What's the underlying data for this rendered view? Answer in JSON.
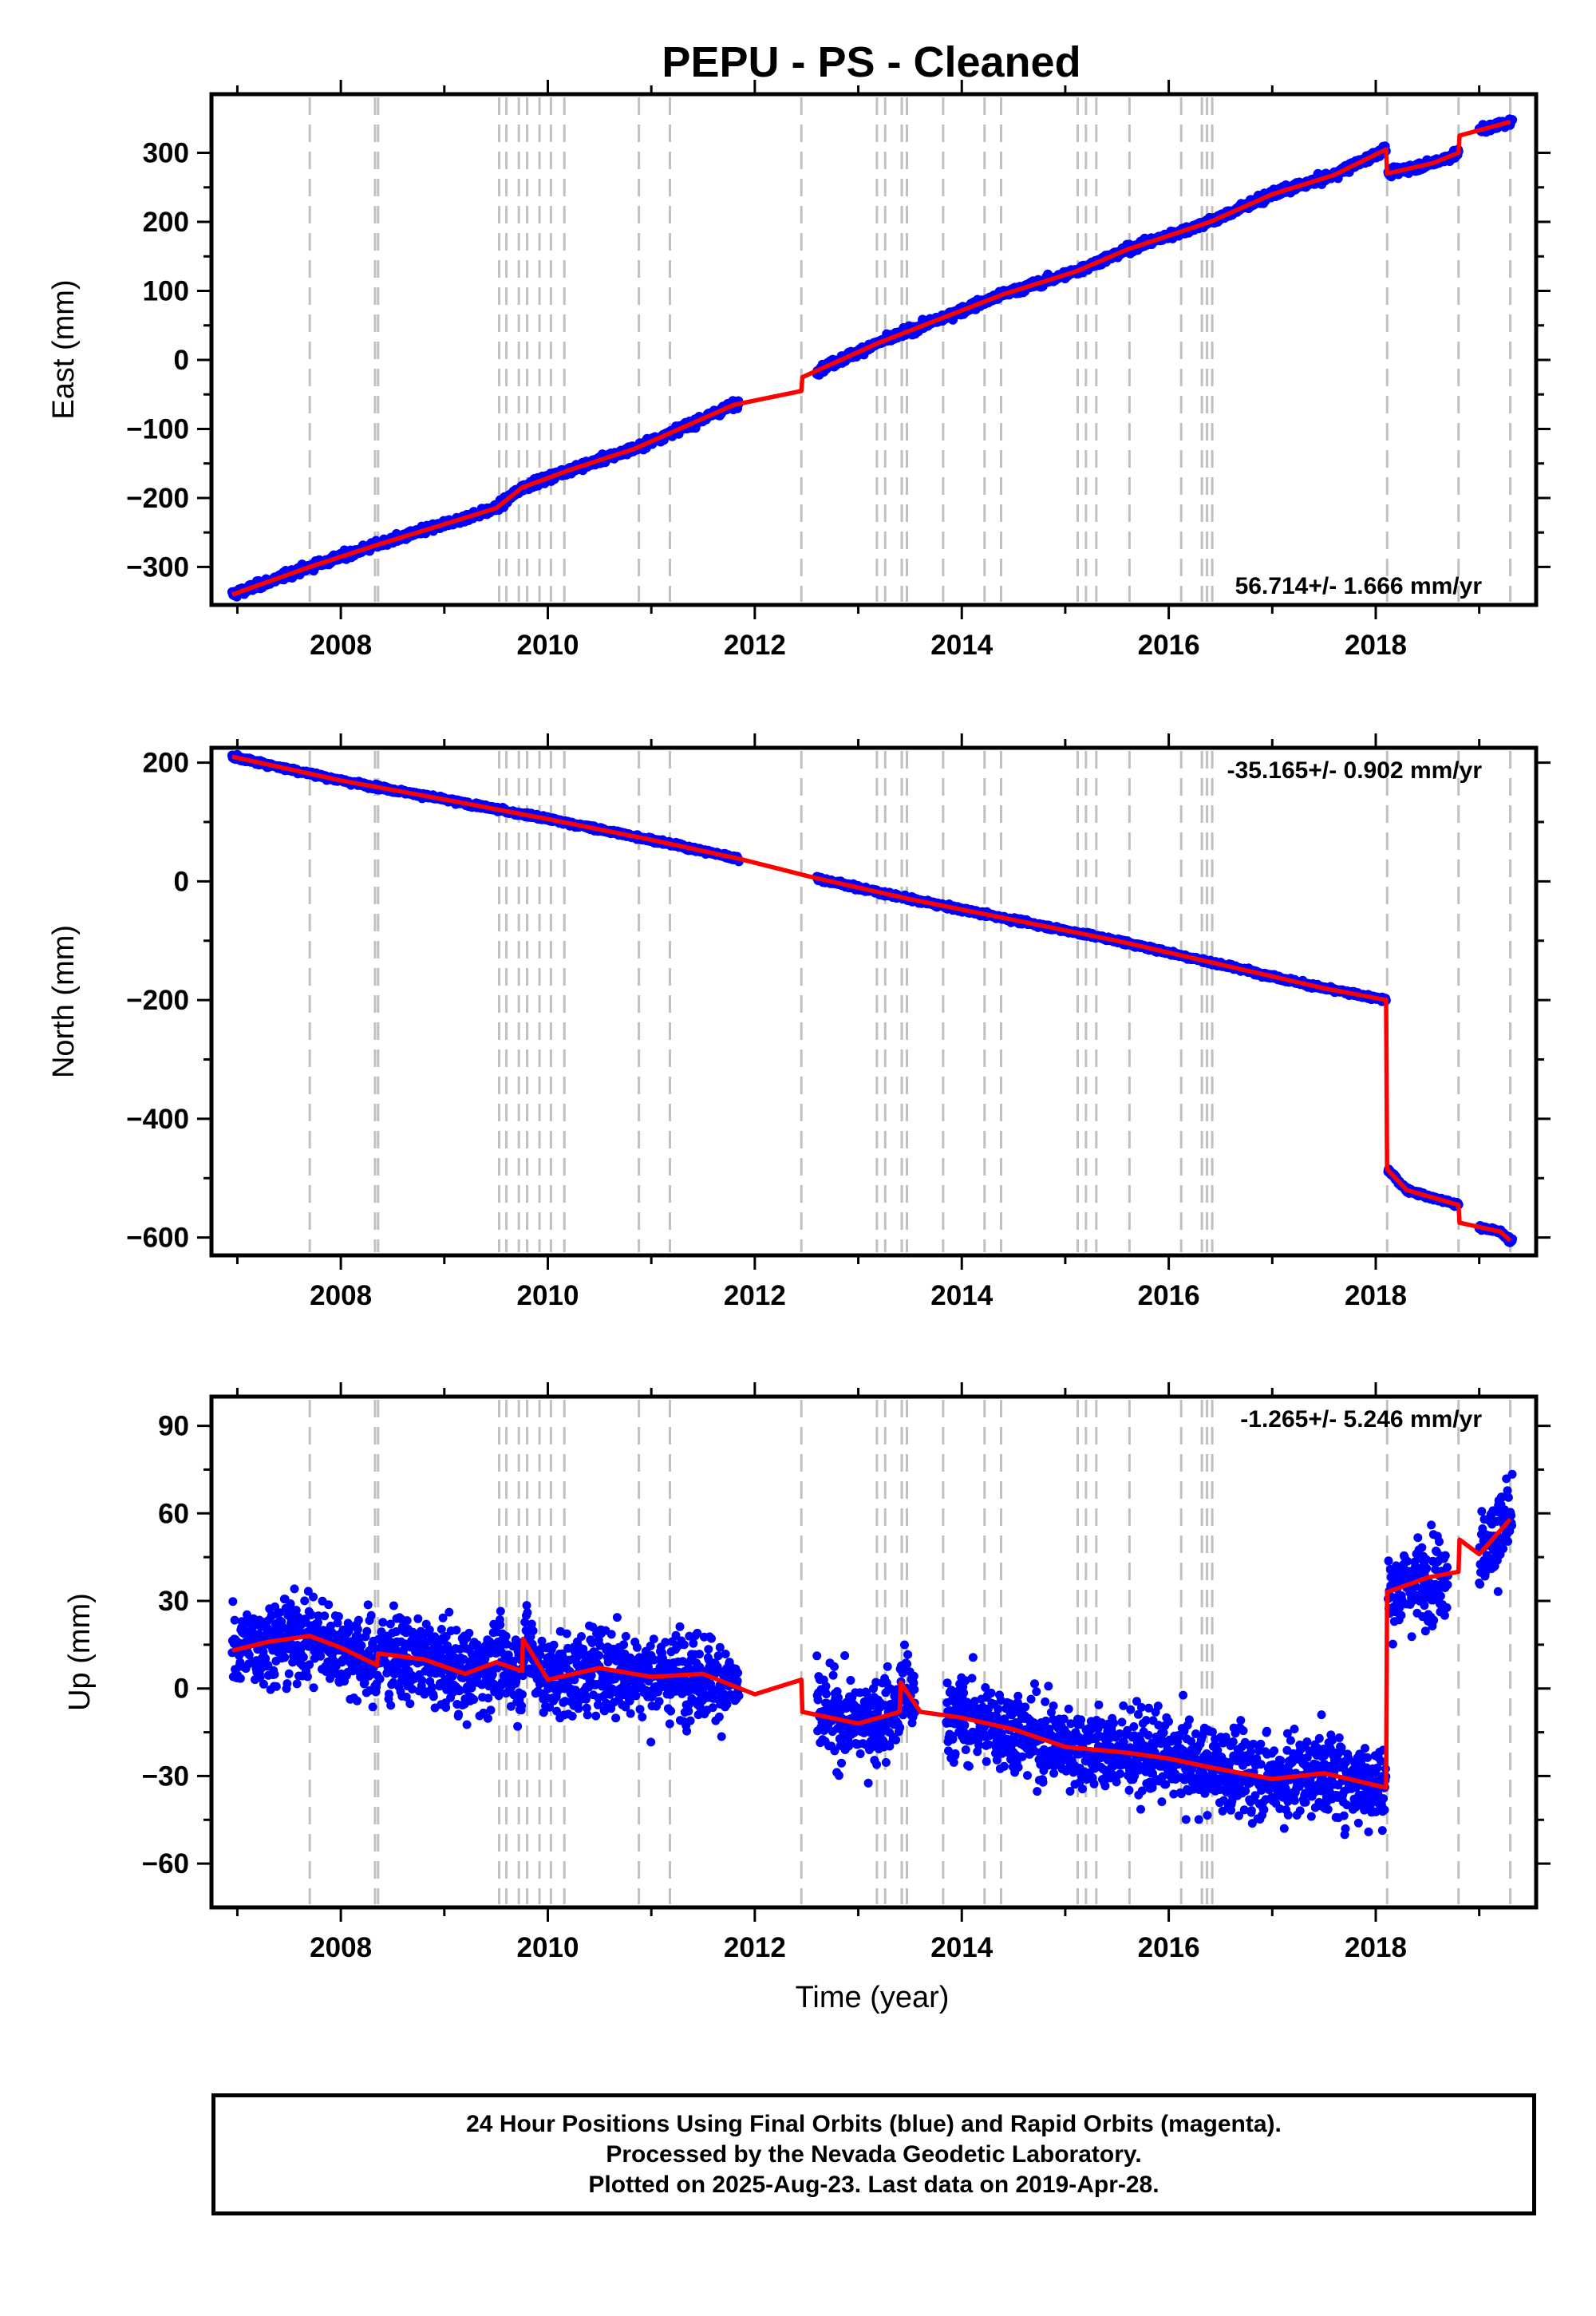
{
  "title": "PEPU  - PS - Cleaned",
  "xlabel": "Time (year)",
  "colors": {
    "final_orbits": "#0000ff",
    "rapid_orbits": "#ff00ff",
    "model": "#ff0000",
    "event_lines": "#c0c0c0",
    "frame": "#000000"
  },
  "caption": {
    "line1": "24 Hour Positions Using Final Orbits (blue) and Rapid Orbits (magenta).",
    "line2": "Processed by the Nevada Geodetic Laboratory.",
    "line3": "Plotted on 2025-Aug-23. Last data on 2019-Apr-28."
  },
  "chart_data": [
    {
      "type": "scatter",
      "ylabel": "East (mm)",
      "rate": "56.714+/- 1.666 mm/yr",
      "rate_position": "bottom-right",
      "xlim": [
        2006.75,
        2019.55
      ],
      "ylim": [
        -355,
        385
      ],
      "xticks": [
        2008,
        2010,
        2012,
        2014,
        2016,
        2018
      ],
      "yticks": [
        -300,
        -200,
        -100,
        0,
        100,
        200,
        300
      ],
      "yticklabels": [
        "−300",
        "−200",
        "−100",
        "0",
        "100",
        "200",
        "300"
      ],
      "noise_mm": 4,
      "model": [
        [
          2006.95,
          -340
        ],
        [
          2007.7,
          -300
        ],
        [
          2008.35,
          -268
        ],
        [
          2009.5,
          -215
        ],
        [
          2009.75,
          -185
        ],
        [
          2010.2,
          -160
        ],
        [
          2010.85,
          -128
        ],
        [
          2011.8,
          -65
        ],
        [
          2012.45,
          -45
        ],
        [
          2012.46,
          -25
        ],
        [
          2013.2,
          25
        ],
        [
          2013.8,
          60
        ],
        [
          2014.4,
          95
        ],
        [
          2015.1,
          128
        ],
        [
          2015.6,
          160
        ],
        [
          2016.4,
          200
        ],
        [
          2017.0,
          240
        ],
        [
          2017.6,
          268
        ],
        [
          2018.1,
          305
        ],
        [
          2018.11,
          270
        ],
        [
          2018.55,
          285
        ],
        [
          2018.8,
          300
        ],
        [
          2018.81,
          325
        ],
        [
          2019.3,
          345
        ]
      ],
      "data_segments": [
        [
          2006.95,
          2011.85
        ],
        [
          2012.6,
          2018.1
        ],
        [
          2018.12,
          2018.8
        ],
        [
          2019.0,
          2019.32
        ]
      ]
    },
    {
      "type": "scatter",
      "ylabel": "North (mm)",
      "rate": "-35.165+/- 0.902 mm/yr",
      "rate_position": "top-right",
      "xlim": [
        2006.75,
        2019.55
      ],
      "ylim": [
        -630,
        225
      ],
      "xticks": [
        2008,
        2010,
        2012,
        2014,
        2016,
        2018
      ],
      "yticks": [
        -600,
        -400,
        -200,
        0,
        200
      ],
      "yticklabels": [
        "−600",
        "−400",
        "−200",
        "0",
        "200"
      ],
      "noise_mm": 2.5,
      "model": [
        [
          2006.95,
          210
        ],
        [
          2008.0,
          170
        ],
        [
          2009.0,
          138
        ],
        [
          2010.0,
          105
        ],
        [
          2011.0,
          70
        ],
        [
          2011.85,
          38
        ],
        [
          2012.6,
          5
        ],
        [
          2013.5,
          -30
        ],
        [
          2014.5,
          -65
        ],
        [
          2015.5,
          -100
        ],
        [
          2016.5,
          -140
        ],
        [
          2017.5,
          -180
        ],
        [
          2018.1,
          -200
        ],
        [
          2018.11,
          -485
        ],
        [
          2018.3,
          -520
        ],
        [
          2018.8,
          -545
        ],
        [
          2018.81,
          -575
        ],
        [
          2019.2,
          -590
        ],
        [
          2019.3,
          -605
        ]
      ],
      "data_segments": [
        [
          2006.95,
          2011.85
        ],
        [
          2012.6,
          2018.1
        ],
        [
          2018.12,
          2018.8
        ],
        [
          2019.0,
          2019.32
        ]
      ]
    },
    {
      "type": "scatter",
      "ylabel": "Up (mm)",
      "rate": "-1.265+/- 5.246 mm/yr",
      "rate_position": "top-right",
      "xlim": [
        2006.75,
        2019.55
      ],
      "ylim": [
        -75,
        100
      ],
      "xticks": [
        2008,
        2010,
        2012,
        2014,
        2016,
        2018
      ],
      "yticks": [
        -60,
        -30,
        0,
        30,
        60,
        90
      ],
      "yticklabels": [
        "−60",
        "−30",
        "0",
        "30",
        "60",
        "90"
      ],
      "noise_mm": 10,
      "model": [
        [
          2006.95,
          13
        ],
        [
          2007.3,
          16
        ],
        [
          2007.7,
          18
        ],
        [
          2008.0,
          14
        ],
        [
          2008.35,
          8
        ],
        [
          2008.36,
          12
        ],
        [
          2008.8,
          10
        ],
        [
          2009.2,
          5
        ],
        [
          2009.5,
          9
        ],
        [
          2009.75,
          6
        ],
        [
          2009.76,
          17
        ],
        [
          2010.0,
          3
        ],
        [
          2010.5,
          7
        ],
        [
          2011.0,
          4
        ],
        [
          2011.5,
          5
        ],
        [
          2012.0,
          -2
        ],
        [
          2012.45,
          3
        ],
        [
          2012.46,
          -8
        ],
        [
          2013.0,
          -12
        ],
        [
          2013.4,
          -8
        ],
        [
          2013.41,
          2
        ],
        [
          2013.6,
          -8
        ],
        [
          2014.0,
          -10
        ],
        [
          2014.5,
          -14
        ],
        [
          2015.0,
          -20
        ],
        [
          2015.6,
          -22
        ],
        [
          2016.0,
          -24
        ],
        [
          2016.4,
          -27
        ],
        [
          2017.0,
          -31
        ],
        [
          2017.5,
          -29
        ],
        [
          2018.1,
          -34
        ],
        [
          2018.11,
          33
        ],
        [
          2018.5,
          38
        ],
        [
          2018.8,
          40
        ],
        [
          2018.81,
          51
        ],
        [
          2019.0,
          46
        ],
        [
          2019.3,
          58
        ]
      ],
      "data_segments": [
        [
          2006.95,
          2011.85
        ],
        [
          2012.6,
          2013.55
        ],
        [
          2013.85,
          2018.1
        ],
        [
          2018.12,
          2018.7
        ],
        [
          2019.0,
          2019.32
        ]
      ]
    }
  ],
  "event_lines": [
    2007.7,
    2008.33,
    2008.36,
    2009.53,
    2009.6,
    2009.72,
    2009.8,
    2009.92,
    2010.03,
    2010.16,
    2010.88,
    2011.18,
    2012.45,
    2013.18,
    2013.26,
    2013.42,
    2013.47,
    2013.82,
    2014.22,
    2014.38,
    2015.12,
    2015.2,
    2015.3,
    2015.62,
    2016.12,
    2016.32,
    2016.37,
    2016.42,
    2018.11,
    2018.8,
    2019.3
  ]
}
